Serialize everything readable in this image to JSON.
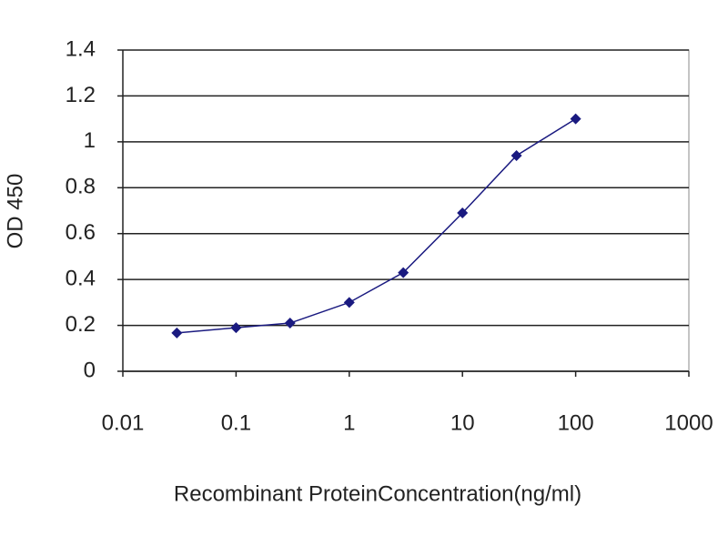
{
  "chart_data": {
    "type": "line",
    "x_label": "Recombinant ProteinConcentration(ng/ml)",
    "y_label": "OD 450",
    "x": [
      0.03,
      0.1,
      0.3,
      1,
      3,
      10,
      30,
      100
    ],
    "values": [
      0.167,
      0.19,
      0.21,
      0.3,
      0.43,
      0.69,
      0.94,
      1.1
    ],
    "color": "#1a1a80",
    "x_log": true,
    "xlim": [
      0.01,
      1000
    ],
    "xticks": [
      0.01,
      0.1,
      1,
      10,
      100,
      1000
    ],
    "ylim": [
      0,
      1.4
    ],
    "yticks": [
      0,
      0.2,
      0.4,
      0.6,
      0.8,
      1,
      1.2,
      1.4
    ],
    "grid": true
  }
}
